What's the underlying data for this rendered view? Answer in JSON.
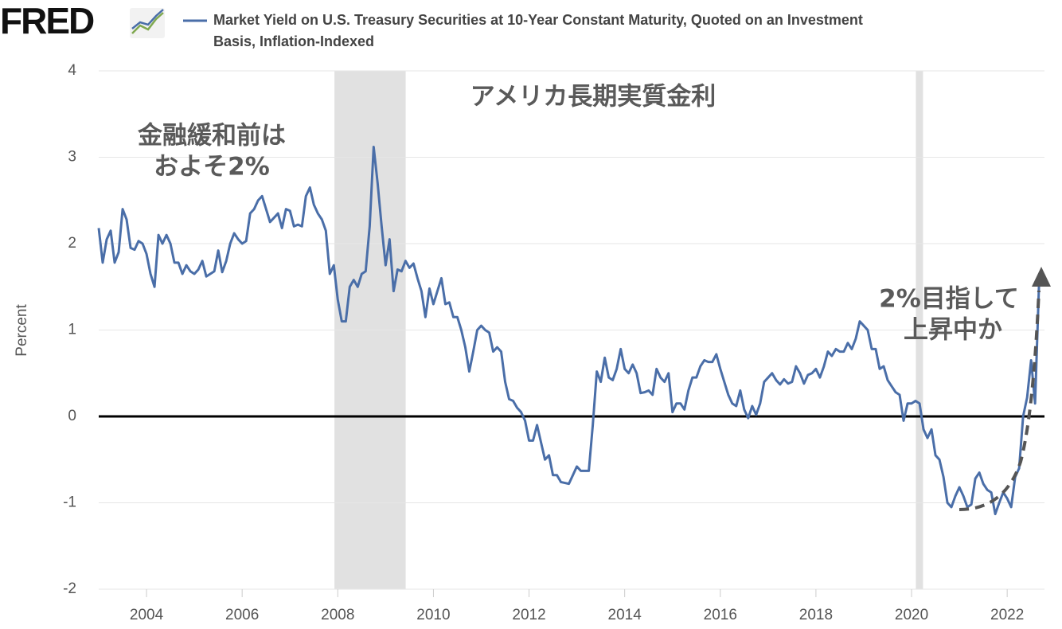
{
  "logo": "FRED",
  "chart_data": {
    "type": "line",
    "legend": "Market Yield on U.S. Treasury Securities at 10-Year Constant Maturity, Quoted on an Investment Basis, Inflation-Indexed",
    "y_label": "Percent",
    "annotations": [
      {
        "lines": [
          "アメリカ長期実質金利"
        ]
      },
      {
        "lines": [
          "金融緩和前は",
          "およそ2%"
        ]
      },
      {
        "lines": [
          "2%目指して",
          "上昇中か"
        ]
      }
    ],
    "xlim": [
      2003,
      2022.78
    ],
    "ylim": [
      -2,
      4
    ],
    "xticks": [
      2004,
      2006,
      2008,
      2010,
      2012,
      2014,
      2016,
      2018,
      2020,
      2022
    ],
    "yticks": [
      -2,
      -1,
      0,
      1,
      2,
      3,
      4
    ],
    "grid": true,
    "recessions": [
      [
        2007.93,
        2009.42
      ],
      [
        2020.09,
        2020.24
      ]
    ],
    "x": [
      2003,
      2003.083,
      2003.167,
      2003.25,
      2003.333,
      2003.417,
      2003.5,
      2003.583,
      2003.667,
      2003.75,
      2003.833,
      2003.917,
      2004,
      2004.083,
      2004.167,
      2004.25,
      2004.333,
      2004.417,
      2004.5,
      2004.583,
      2004.667,
      2004.75,
      2004.833,
      2004.917,
      2005,
      2005.083,
      2005.167,
      2005.25,
      2005.333,
      2005.417,
      2005.5,
      2005.583,
      2005.667,
      2005.75,
      2005.833,
      2005.917,
      2006,
      2006.083,
      2006.167,
      2006.25,
      2006.333,
      2006.417,
      2006.5,
      2006.583,
      2006.667,
      2006.75,
      2006.833,
      2006.917,
      2007,
      2007.083,
      2007.167,
      2007.25,
      2007.333,
      2007.417,
      2007.5,
      2007.583,
      2007.667,
      2007.75,
      2007.833,
      2007.917,
      2008,
      2008.083,
      2008.167,
      2008.25,
      2008.333,
      2008.417,
      2008.5,
      2008.583,
      2008.667,
      2008.75,
      2008.833,
      2008.917,
      2009,
      2009.083,
      2009.167,
      2009.25,
      2009.333,
      2009.417,
      2009.5,
      2009.583,
      2009.667,
      2009.75,
      2009.833,
      2009.917,
      2010,
      2010.083,
      2010.167,
      2010.25,
      2010.333,
      2010.417,
      2010.5,
      2010.583,
      2010.667,
      2010.75,
      2010.833,
      2010.917,
      2011,
      2011.083,
      2011.167,
      2011.25,
      2011.333,
      2011.417,
      2011.5,
      2011.583,
      2011.667,
      2011.75,
      2011.833,
      2011.917,
      2012,
      2012.083,
      2012.167,
      2012.25,
      2012.333,
      2012.417,
      2012.5,
      2012.583,
      2012.667,
      2012.75,
      2012.833,
      2012.917,
      2013,
      2013.083,
      2013.167,
      2013.25,
      2013.333,
      2013.417,
      2013.5,
      2013.583,
      2013.667,
      2013.75,
      2013.833,
      2013.917,
      2014,
      2014.083,
      2014.167,
      2014.25,
      2014.333,
      2014.417,
      2014.5,
      2014.583,
      2014.667,
      2014.75,
      2014.833,
      2014.917,
      2015,
      2015.083,
      2015.167,
      2015.25,
      2015.333,
      2015.417,
      2015.5,
      2015.583,
      2015.667,
      2015.75,
      2015.833,
      2015.917,
      2016,
      2016.083,
      2016.167,
      2016.25,
      2016.333,
      2016.417,
      2016.5,
      2016.583,
      2016.667,
      2016.75,
      2016.833,
      2016.917,
      2017,
      2017.083,
      2017.167,
      2017.25,
      2017.333,
      2017.417,
      2017.5,
      2017.583,
      2017.667,
      2017.75,
      2017.833,
      2017.917,
      2018,
      2018.083,
      2018.167,
      2018.25,
      2018.333,
      2018.417,
      2018.5,
      2018.583,
      2018.667,
      2018.75,
      2018.833,
      2018.917,
      2019,
      2019.083,
      2019.167,
      2019.25,
      2019.333,
      2019.417,
      2019.5,
      2019.583,
      2019.667,
      2019.75,
      2019.833,
      2019.917,
      2020,
      2020.083,
      2020.167,
      2020.25,
      2020.333,
      2020.417,
      2020.5,
      2020.583,
      2020.667,
      2020.75,
      2020.833,
      2020.917,
      2021,
      2021.083,
      2021.167,
      2021.25,
      2021.333,
      2021.417,
      2021.5,
      2021.583,
      2021.667,
      2021.75,
      2021.833,
      2021.917,
      2022,
      2022.083,
      2022.167,
      2022.25,
      2022.333,
      2022.417,
      2022.5,
      2022.583,
      2022.667
    ],
    "series": [
      {
        "name": "Market Yield on U.S. Treasury Securities at 10-Year Constant Maturity, Quoted on an Investment Basis, Inflation-Indexed",
        "color": "#4a6ea8",
        "values": [
          2.18,
          1.78,
          2.05,
          2.15,
          1.78,
          1.9,
          2.4,
          2.28,
          1.95,
          1.93,
          2.03,
          2.0,
          1.88,
          1.65,
          1.5,
          2.1,
          2.0,
          2.1,
          2.0,
          1.78,
          1.78,
          1.65,
          1.75,
          1.68,
          1.65,
          1.7,
          1.8,
          1.62,
          1.65,
          1.68,
          1.92,
          1.67,
          1.8,
          2.0,
          2.12,
          2.05,
          2.0,
          2.03,
          2.35,
          2.4,
          2.5,
          2.55,
          2.4,
          2.25,
          2.3,
          2.35,
          2.18,
          2.4,
          2.38,
          2.2,
          2.22,
          2.2,
          2.55,
          2.65,
          2.45,
          2.35,
          2.28,
          2.15,
          1.65,
          1.75,
          1.35,
          1.1,
          1.1,
          1.5,
          1.58,
          1.5,
          1.65,
          1.68,
          2.2,
          3.12,
          2.7,
          2.2,
          1.75,
          2.05,
          1.45,
          1.7,
          1.68,
          1.8,
          1.72,
          1.77,
          1.6,
          1.45,
          1.15,
          1.48,
          1.3,
          1.45,
          1.6,
          1.3,
          1.32,
          1.15,
          1.15,
          1.0,
          0.8,
          0.52,
          0.75,
          1.0,
          1.05,
          1.0,
          0.97,
          0.75,
          0.8,
          0.75,
          0.4,
          0.2,
          0.18,
          0.1,
          0.05,
          -0.05,
          -0.28,
          -0.28,
          -0.1,
          -0.3,
          -0.5,
          -0.45,
          -0.68,
          -0.68,
          -0.76,
          -0.77,
          -0.78,
          -0.68,
          -0.58,
          -0.63,
          -0.63,
          -0.63,
          -0.1,
          0.52,
          0.4,
          0.68,
          0.45,
          0.42,
          0.55,
          0.78,
          0.55,
          0.5,
          0.6,
          0.5,
          0.27,
          0.28,
          0.3,
          0.25,
          0.55,
          0.45,
          0.4,
          0.5,
          0.05,
          0.15,
          0.15,
          0.08,
          0.3,
          0.45,
          0.45,
          0.58,
          0.65,
          0.63,
          0.63,
          0.72,
          0.55,
          0.4,
          0.25,
          0.15,
          0.12,
          0.3,
          0.08,
          -0.02,
          0.12,
          0.02,
          0.15,
          0.4,
          0.45,
          0.5,
          0.42,
          0.37,
          0.43,
          0.38,
          0.4,
          0.58,
          0.5,
          0.38,
          0.48,
          0.5,
          0.55,
          0.45,
          0.58,
          0.75,
          0.7,
          0.78,
          0.75,
          0.75,
          0.85,
          0.78,
          0.9,
          1.1,
          1.05,
          1.0,
          0.78,
          0.78,
          0.55,
          0.58,
          0.42,
          0.35,
          0.28,
          0.25,
          -0.05,
          0.15,
          0.15,
          0.18,
          0.15,
          -0.15,
          -0.25,
          -0.15,
          -0.45,
          -0.5,
          -0.7,
          -1.0,
          -1.05,
          -0.92,
          -0.82,
          -0.92,
          -1.05,
          -1.02,
          -0.72,
          -0.65,
          -0.78,
          -0.85,
          -0.88,
          -1.13,
          -1.0,
          -0.88,
          -0.95,
          -1.05,
          -0.7,
          -0.6,
          0.0,
          0.22,
          0.65,
          0.15,
          1.55
        ]
      }
    ]
  }
}
